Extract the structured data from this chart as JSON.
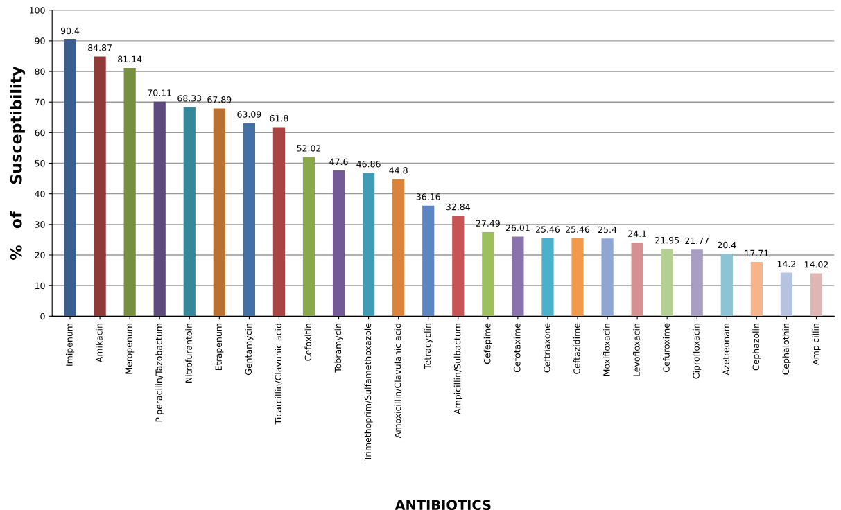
{
  "chart_data": {
    "type": "bar",
    "xlabel": "ANTIBIOTICS",
    "ylabel": "%   of     Susceptibility",
    "categories": [
      "Imipenum",
      "Amikacin",
      "Meropenum",
      "Piperacilin/Tazobactum",
      "Nitrofurantoin",
      "Etrapenum",
      "Gentamycin",
      "Ticarcillin/Clavunic acid",
      "Cefoxitin",
      "Tobramycin",
      "Trimethoprim/Sulfamethoxazole",
      "Amoxicillin/Clavulanic acid",
      "Tetracyclin",
      "Ampicillin/Sulbactum",
      "Cefepime",
      "Cefotaxime",
      "Ceftriaxone",
      "Ceftazidime",
      "Moxifloxacin",
      "Levofloxacin",
      "Cefuroxime",
      "Ciprofloxacin",
      "Azetreonam",
      "Cephazolin",
      "Cephalothin",
      "Ampicillin"
    ],
    "values": [
      90.4,
      84.87,
      81.14,
      70.11,
      68.33,
      67.89,
      63.09,
      61.8,
      52.02,
      47.6,
      46.86,
      44.8,
      36.16,
      32.84,
      27.49,
      26.01,
      25.46,
      25.46,
      25.4,
      24.1,
      21.95,
      21.77,
      20.4,
      17.71,
      14.2,
      14.02
    ],
    "colors": [
      "#3a5f8f",
      "#8f3a38",
      "#76903f",
      "#5e4a7c",
      "#35879a",
      "#ba7030",
      "#4470a8",
      "#a84442",
      "#88a84a",
      "#735a96",
      "#3c9db5",
      "#d9843a",
      "#5b86c2",
      "#c55452",
      "#9dbf5c",
      "#8a72ad",
      "#4ab0cb",
      "#f29a4a",
      "#8fa6d3",
      "#d69090",
      "#b4cf92",
      "#a99dc3",
      "#8cc4d6",
      "#f6b48a",
      "#b5c3e0",
      "#e0b5b4"
    ],
    "data_labels": true,
    "grid": "y",
    "ylim": [
      0,
      100
    ],
    "yticks": [
      0,
      10,
      20,
      30,
      40,
      50,
      60,
      70,
      80,
      90,
      100
    ]
  }
}
